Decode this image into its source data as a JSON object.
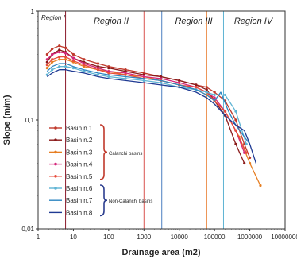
{
  "chart_data": {
    "type": "line",
    "title": "",
    "xlabel": "Drainage area (m2)",
    "ylabel": "Slope (m/m)",
    "x_scale": "log",
    "y_scale": "log",
    "xlim": [
      1,
      10000000
    ],
    "ylim": [
      0.01,
      1
    ],
    "x_ticks": [
      "1",
      "10",
      "100",
      "1000",
      "10000",
      "100000",
      "1000000",
      "10000000"
    ],
    "y_ticks": [
      "0,01",
      "0,1",
      "1"
    ],
    "grid": false,
    "legend_position": "left-bottom",
    "regions": [
      {
        "label": "Region I"
      },
      {
        "label": "Region II"
      },
      {
        "label": "Region III"
      },
      {
        "label": "Region IV"
      }
    ],
    "region_boundaries": [
      {
        "x": 6,
        "color": "#8b1a2b"
      },
      {
        "x": 1000,
        "color": "#d9534f"
      },
      {
        "x": 3200,
        "color": "#4a7fc1"
      },
      {
        "x": 60000,
        "color": "#e87a2a"
      },
      {
        "x": 180000,
        "color": "#5fb4d4"
      }
    ],
    "group_labels": [
      {
        "text": "Calanchi basins",
        "color": "#c0392b"
      },
      {
        "text": "Non-Calanchi basins",
        "color": "#2c3e8f"
      }
    ],
    "series": [
      {
        "name": "Basin n.1",
        "color": "#c0392b",
        "marker": true,
        "x": [
          1.8,
          2.5,
          4,
          6,
          10,
          20,
          50,
          100,
          300,
          1000,
          3000,
          10000,
          30000,
          60000,
          100000,
          200000,
          400000,
          700000,
          1000000
        ],
        "y": [
          0.4,
          0.45,
          0.48,
          0.46,
          0.4,
          0.36,
          0.33,
          0.31,
          0.29,
          0.27,
          0.25,
          0.23,
          0.21,
          0.2,
          0.18,
          0.15,
          0.1,
          0.06,
          0.045
        ]
      },
      {
        "name": "Basin n.2",
        "color": "#8b1a1a",
        "marker": true,
        "x": [
          1.8,
          2.5,
          4,
          6,
          10,
          20,
          50,
          100,
          300,
          1000,
          3000,
          10000,
          30000,
          60000,
          100000,
          200000,
          400000,
          700000
        ],
        "y": [
          0.34,
          0.4,
          0.44,
          0.42,
          0.37,
          0.34,
          0.31,
          0.3,
          0.28,
          0.26,
          0.25,
          0.23,
          0.21,
          0.19,
          0.15,
          0.11,
          0.06,
          0.04
        ]
      },
      {
        "name": "Basin n.3",
        "color": "#e67e22",
        "marker": true,
        "x": [
          1.8,
          2.5,
          4,
          6,
          10,
          20,
          50,
          100,
          300,
          1000,
          3000,
          10000,
          30000,
          60000,
          100000,
          200000,
          500000,
          1000000,
          2000000
        ],
        "y": [
          0.3,
          0.34,
          0.36,
          0.36,
          0.34,
          0.31,
          0.29,
          0.28,
          0.26,
          0.25,
          0.23,
          0.21,
          0.19,
          0.17,
          0.15,
          0.12,
          0.07,
          0.04,
          0.025
        ]
      },
      {
        "name": "Basin n.4",
        "color": "#d4267a",
        "marker": true,
        "x": [
          1.8,
          2.5,
          4,
          6,
          10,
          20,
          50,
          100,
          300,
          1000,
          3000,
          10000,
          30000,
          60000,
          100000,
          200000,
          400000,
          700000
        ],
        "y": [
          0.36,
          0.4,
          0.42,
          0.41,
          0.37,
          0.33,
          0.3,
          0.28,
          0.27,
          0.25,
          0.24,
          0.22,
          0.2,
          0.18,
          0.16,
          0.12,
          0.08,
          0.05
        ]
      },
      {
        "name": "Basin n.5",
        "color": "#e74c3c",
        "marker": true,
        "x": [
          1.8,
          2.5,
          4,
          6,
          10,
          20,
          50,
          100,
          300,
          1000,
          3000,
          10000,
          30000,
          60000,
          100000,
          200000,
          400000,
          800000
        ],
        "y": [
          0.32,
          0.36,
          0.38,
          0.38,
          0.35,
          0.32,
          0.29,
          0.27,
          0.26,
          0.24,
          0.23,
          0.21,
          0.2,
          0.18,
          0.15,
          0.12,
          0.08,
          0.05
        ]
      },
      {
        "name": "Basin n.6",
        "color": "#5fb4d4",
        "marker": true,
        "x": [
          1.8,
          2.5,
          4,
          6,
          10,
          20,
          50,
          100,
          300,
          1000,
          3000,
          10000,
          30000,
          60000,
          100000,
          200000,
          400000,
          800000
        ],
        "y": [
          0.26,
          0.29,
          0.31,
          0.31,
          0.3,
          0.28,
          0.26,
          0.25,
          0.24,
          0.23,
          0.22,
          0.2,
          0.19,
          0.18,
          0.17,
          0.17,
          0.12,
          0.06
        ]
      },
      {
        "name": "Basin n.7",
        "color": "#2e86c1",
        "marker": false,
        "x": [
          1.8,
          2.5,
          4,
          6,
          10,
          20,
          50,
          100,
          300,
          1000,
          3000,
          10000,
          30000,
          60000,
          100000,
          150000,
          250000,
          400000,
          700000,
          1000000
        ],
        "y": [
          0.28,
          0.31,
          0.33,
          0.33,
          0.31,
          0.29,
          0.27,
          0.26,
          0.25,
          0.24,
          0.23,
          0.21,
          0.19,
          0.17,
          0.15,
          0.18,
          0.12,
          0.09,
          0.07,
          0.06
        ]
      },
      {
        "name": "Basin n.8",
        "color": "#1f3a93",
        "marker": false,
        "x": [
          1.8,
          2.5,
          4,
          6,
          10,
          20,
          50,
          100,
          300,
          1000,
          3000,
          10000,
          30000,
          60000,
          100000,
          200000,
          400000,
          700000,
          1000000,
          1500000
        ],
        "y": [
          0.25,
          0.27,
          0.29,
          0.29,
          0.28,
          0.27,
          0.25,
          0.24,
          0.23,
          0.22,
          0.21,
          0.2,
          0.18,
          0.16,
          0.14,
          0.11,
          0.09,
          0.08,
          0.06,
          0.04
        ]
      }
    ]
  }
}
